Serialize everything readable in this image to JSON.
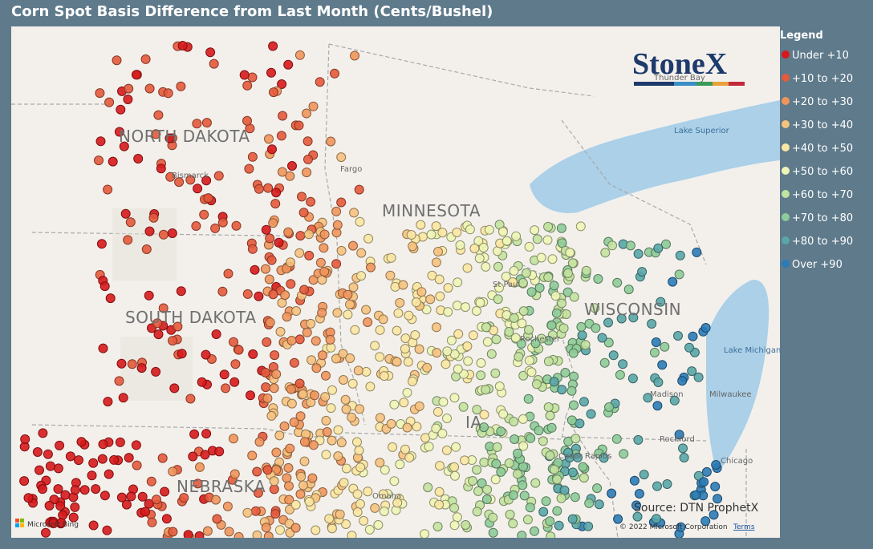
{
  "title": "Corn Spot Basis Difference from Last Month (Cents/Bushel)",
  "legend": {
    "title": "Legend",
    "items": [
      {
        "label": "Under +10",
        "color": "#d7191c"
      },
      {
        "label": "+10 to +20",
        "color": "#e45a3c"
      },
      {
        "label": "+20 to +30",
        "color": "#ef955c"
      },
      {
        "label": "+30 to +40",
        "color": "#f6c27f"
      },
      {
        "label": "+40 to +50",
        "color": "#fbe7a3"
      },
      {
        "label": "+50 to +60",
        "color": "#eef5b6"
      },
      {
        "label": "+60 to +70",
        "color": "#c3e2a0"
      },
      {
        "label": "+70 to +80",
        "color": "#8ecb98"
      },
      {
        "label": "+80 to +90",
        "color": "#5aa6a8"
      },
      {
        "label": "Over +90",
        "color": "#2c7bb6"
      }
    ]
  },
  "logo": "StoneX",
  "map": {
    "states": [
      "NORTH DAKOTA",
      "MINNESOTA",
      "SOUTH DAKOTA",
      "WISCONSIN",
      "NEBRASKA",
      "IA"
    ],
    "places": [
      "Bismarck",
      "Fargo",
      "Thunder Bay",
      "Lake Superior",
      "Lake Michigan",
      "Milwaukee",
      "Rockford",
      "Chicago",
      "Cedar Rapids",
      "Rochester",
      "St Paul",
      "Omaha",
      "Madison"
    ]
  },
  "attribution": {
    "source": "Source: DTN ProphetX",
    "copyright": "© 2022 Microsoft Corporation",
    "terms": "Terms",
    "provider": "Microsoft Bing"
  }
}
